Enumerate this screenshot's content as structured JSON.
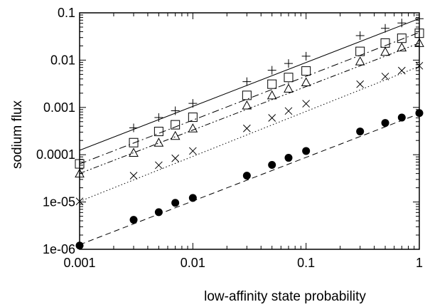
{
  "chart_data": {
    "type": "line",
    "xlabel": "low-affinity state probability",
    "ylabel": "sodium flux",
    "xscale": "log",
    "yscale": "log",
    "xlim": [
      0.001,
      1
    ],
    "ylim": [
      1e-06,
      0.1
    ],
    "grid": false,
    "legend": "none",
    "x_ticks": [
      {
        "v": 0.001,
        "label": "0.001"
      },
      {
        "v": 0.01,
        "label": "0.01"
      },
      {
        "v": 0.1,
        "label": "0.1"
      },
      {
        "v": 1,
        "label": "1"
      }
    ],
    "y_ticks": [
      {
        "v": 1e-06,
        "label": "1e-06"
      },
      {
        "v": 1e-05,
        "label": "1e-05"
      },
      {
        "v": 0.0001,
        "label": "0.0001"
      },
      {
        "v": 0.001,
        "label": "0.001"
      },
      {
        "v": 0.01,
        "label": "0.01"
      },
      {
        "v": 0.1,
        "label": "0.1"
      }
    ],
    "series": [
      {
        "marker": "plus",
        "line": "solid",
        "line_y": [
          0.000124,
          0.0756
        ],
        "x": [
          0.003,
          0.005,
          0.007,
          0.01,
          0.03,
          0.05,
          0.07,
          0.1,
          0.3,
          0.5,
          0.7,
          1
        ],
        "y": [
          0.00037,
          0.00061,
          0.00085,
          0.00122,
          0.0035,
          0.0061,
          0.0085,
          0.0121,
          0.033,
          0.047,
          0.061,
          0.075
        ]
      },
      {
        "marker": "square",
        "line": "dashdot",
        "line_y": [
          6.37e-05,
          0.0385
        ],
        "x": [
          0.001,
          0.003,
          0.005,
          0.007,
          0.01,
          0.03,
          0.05,
          0.07,
          0.1,
          0.3,
          0.5,
          0.7,
          1
        ],
        "y": [
          6.4e-05,
          0.00018,
          0.00031,
          0.00043,
          0.00062,
          0.0018,
          0.0031,
          0.0043,
          0.0059,
          0.0153,
          0.023,
          0.029,
          0.037
        ]
      },
      {
        "marker": "triangle",
        "line": "dashdotdot",
        "line_y": [
          4.01e-05,
          0.0229
        ],
        "x": [
          0.001,
          0.003,
          0.005,
          0.007,
          0.01,
          0.03,
          0.05,
          0.07,
          0.1,
          0.3,
          0.5,
          0.7,
          1
        ],
        "y": [
          4e-05,
          0.00011,
          0.00018,
          0.00025,
          0.00036,
          0.0011,
          0.0018,
          0.0025,
          0.0034,
          0.0094,
          0.015,
          0.0185,
          0.023
        ]
      },
      {
        "marker": "cross",
        "line": "dotted",
        "line_y": [
          1.03e-05,
          0.00737
        ],
        "x": [
          0.001,
          0.003,
          0.005,
          0.007,
          0.01,
          0.03,
          0.05,
          0.07,
          0.1,
          0.3,
          0.5,
          0.7,
          1
        ],
        "y": [
          1.03e-05,
          3.6e-05,
          6e-05,
          8.4e-05,
          0.00012,
          0.00036,
          0.0006,
          0.00084,
          0.0012,
          0.0031,
          0.0045,
          0.006,
          0.0076
        ]
      },
      {
        "marker": "circle",
        "line": "dashed",
        "line_y": [
          1.25e-06,
          0.000737
        ],
        "x": [
          0.001,
          0.003,
          0.005,
          0.007,
          0.01,
          0.03,
          0.05,
          0.07,
          0.1,
          0.3,
          0.5,
          0.7,
          1
        ],
        "y": [
          1.2e-06,
          4.2e-06,
          6.1e-06,
          9.6e-06,
          1.22e-05,
          3.6e-05,
          6.1e-05,
          8.6e-05,
          0.00012,
          0.00031,
          0.00047,
          0.00061,
          0.00076
        ]
      }
    ]
  }
}
